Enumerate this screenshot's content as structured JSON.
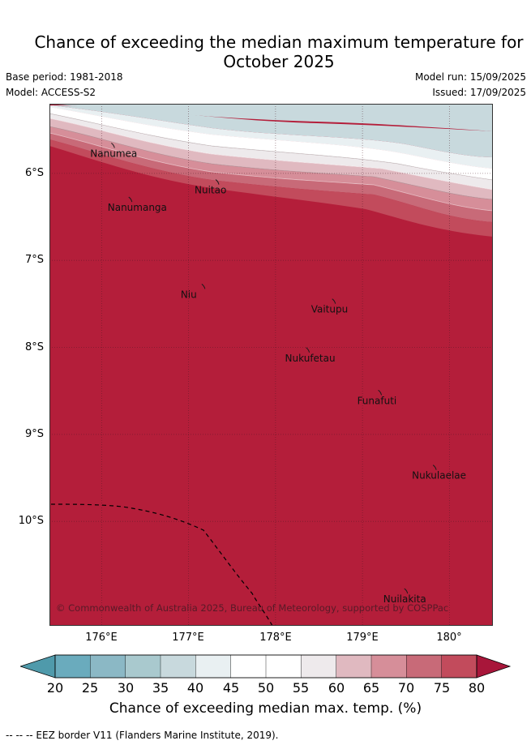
{
  "title": {
    "line1": "Chance of exceeding the median maximum temperature for",
    "line2": "October 2025"
  },
  "meta": {
    "base_period": "Base period: 1981-2018",
    "model": "Model: ACCESS-S2",
    "model_run": "Model run: 15/09/2025",
    "issued": "Issued: 17/09/2025"
  },
  "map": {
    "lat_labels": [
      "6°S",
      "7°S",
      "8°S",
      "9°S",
      "10°S"
    ],
    "lon_labels": [
      "176°E",
      "177°E",
      "178°E",
      "179°E",
      "180°"
    ],
    "lat_ticks": [
      6,
      7,
      8,
      9,
      10
    ],
    "lon_ticks": [
      176,
      177,
      178,
      179,
      180
    ],
    "extent": {
      "lon_min": 175.4,
      "lon_max": 180.5,
      "lat_min": -11.2,
      "lat_max": -5.2
    },
    "islands": [
      {
        "name": "Nanumea",
        "lon": 176.13,
        "lat": -5.68
      },
      {
        "name": "Nuitao",
        "lon": 177.33,
        "lat": -6.1
      },
      {
        "name": "Nanumanga",
        "lon": 176.33,
        "lat": -6.3
      },
      {
        "name": "Niu",
        "lon": 177.17,
        "lat": -7.3
      },
      {
        "name": "Vaitupu",
        "lon": 178.67,
        "lat": -7.47
      },
      {
        "name": "Nukufetau",
        "lon": 178.37,
        "lat": -8.03
      },
      {
        "name": "Funafuti",
        "lon": 179.2,
        "lat": -8.52
      },
      {
        "name": "Nukulaelae",
        "lon": 179.83,
        "lat": -9.38
      },
      {
        "name": "Nuilakita",
        "lon": 179.5,
        "lat": -10.8
      }
    ],
    "copyright": "© Commonwealth of Australia 2025, Bureau of Meteorology, supported by COSPPac",
    "dominant_fill": "#b41e3a"
  },
  "colorbar": {
    "ticks": [
      "20",
      "25",
      "30",
      "35",
      "40",
      "45",
      "50",
      "55",
      "60",
      "65",
      "70",
      "75",
      "80"
    ],
    "colors": [
      "#6aabbd",
      "#8bb8c5",
      "#a9c9ce",
      "#c8d9dd",
      "#e9f0f2",
      "#ffffff",
      "#ffffff",
      "#eeeaec",
      "#e0b9c0",
      "#d68e99",
      "#c86a78",
      "#c24b5c",
      "#b41e3a"
    ],
    "label": "Chance of exceeding median max. temp. (%)"
  },
  "footer": "--  --  -- EEZ border V11 (Flanders Marine Institute, 2019)."
}
